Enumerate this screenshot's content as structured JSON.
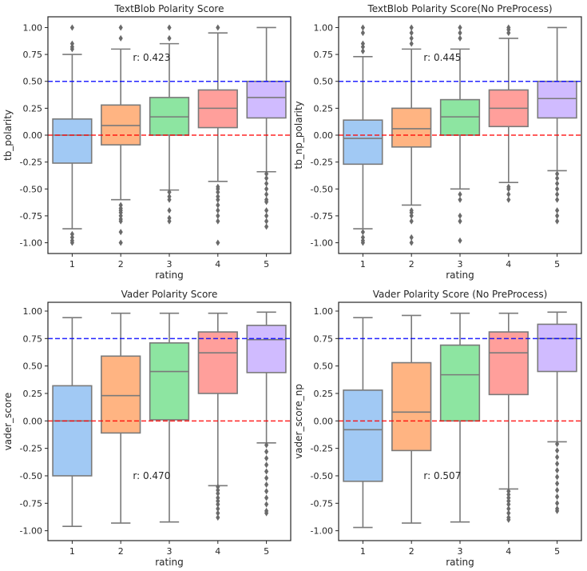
{
  "chart_data": [
    {
      "type": "box",
      "title": "TextBlob Polarity Score",
      "xlabel": "rating",
      "ylabel": "tb_polarity",
      "categories": [
        "1",
        "2",
        "3",
        "4",
        "5"
      ],
      "ylim": [
        -1.1,
        1.1
      ],
      "yticks": [
        "1.00",
        "0.75",
        "0.50",
        "0.25",
        "0.00",
        "-0.25",
        "-0.50",
        "-0.75",
        "-1.00"
      ],
      "annotation": "r: 0.423",
      "annotation_at": [
        1.75,
        0.72
      ],
      "hlines": [
        {
          "y": 0.5,
          "color": "#0000ff"
        },
        {
          "y": 0.0,
          "color": "#ff0000"
        }
      ],
      "boxes": [
        {
          "q1": -0.26,
          "median": 0.0,
          "q3": 0.15,
          "whislo": -0.87,
          "whishi": 0.75,
          "fliers": [
            0.8,
            0.82,
            0.85,
            1.0,
            -0.92,
            -0.95,
            -0.98,
            -1.0
          ]
        },
        {
          "q1": -0.09,
          "median": 0.09,
          "q3": 0.28,
          "whislo": -0.6,
          "whishi": 0.8,
          "fliers": [
            0.9,
            1.0,
            -0.65,
            -0.68,
            -0.7,
            -0.72,
            -0.75,
            -0.78,
            -0.8,
            -0.9,
            -1.0
          ]
        },
        {
          "q1": 0.0,
          "median": 0.17,
          "q3": 0.35,
          "whislo": -0.51,
          "whishi": 0.85,
          "fliers": [
            0.9,
            1.0,
            -0.53,
            -0.57,
            -0.6,
            -0.7,
            -0.77,
            -0.8
          ]
        },
        {
          "q1": 0.07,
          "median": 0.25,
          "q3": 0.42,
          "whislo": -0.43,
          "whishi": 0.95,
          "fliers": [
            1.0,
            -0.48,
            -0.5,
            -0.53,
            -0.57,
            -0.6,
            -0.65,
            -0.7,
            -0.75,
            -0.8,
            -1.0
          ]
        },
        {
          "q1": 0.16,
          "median": 0.35,
          "q3": 0.5,
          "whislo": -0.34,
          "whishi": 1.0,
          "fliers": [
            -0.36,
            -0.4,
            -0.45,
            -0.5,
            -0.55,
            -0.6,
            -0.62,
            -0.7,
            -0.75,
            -0.8,
            -0.85
          ]
        }
      ]
    },
    {
      "type": "box",
      "title": "TextBlob Polarity Score(No PreProcess)",
      "xlabel": "rating",
      "ylabel": "tb_np_polarity",
      "categories": [
        "1",
        "2",
        "3",
        "4",
        "5"
      ],
      "ylim": [
        -1.1,
        1.1
      ],
      "yticks": [
        "1.00",
        "0.75",
        "0.50",
        "0.25",
        "0.00",
        "-0.25",
        "-0.50",
        "-0.75",
        "-1.00"
      ],
      "annotation": "r: 0.445",
      "annotation_at": [
        1.75,
        0.72
      ],
      "hlines": [
        {
          "y": 0.5,
          "color": "#0000ff"
        },
        {
          "y": 0.0,
          "color": "#ff0000"
        }
      ],
      "boxes": [
        {
          "q1": -0.27,
          "median": -0.03,
          "q3": 0.14,
          "whislo": -0.87,
          "whishi": 0.73,
          "fliers": [
            0.78,
            0.82,
            0.85,
            0.95,
            1.0,
            -0.9,
            -0.95,
            -0.98,
            -1.0
          ]
        },
        {
          "q1": -0.11,
          "median": 0.06,
          "q3": 0.25,
          "whislo": -0.65,
          "whishi": 0.8,
          "fliers": [
            0.85,
            0.9,
            0.95,
            1.0,
            -0.7,
            -0.72,
            -0.75,
            -0.8,
            -0.95,
            -1.0
          ]
        },
        {
          "q1": 0.0,
          "median": 0.17,
          "q3": 0.33,
          "whislo": -0.5,
          "whishi": 0.8,
          "fliers": [
            0.9,
            0.95,
            1.0,
            -0.55,
            -0.6,
            -0.75,
            -0.8,
            -0.98
          ]
        },
        {
          "q1": 0.08,
          "median": 0.25,
          "q3": 0.42,
          "whislo": -0.44,
          "whishi": 0.9,
          "fliers": [
            0.95,
            0.98,
            1.0,
            -0.48,
            -0.5,
            -0.55,
            -0.6
          ]
        },
        {
          "q1": 0.16,
          "median": 0.34,
          "q3": 0.5,
          "whislo": -0.33,
          "whishi": 1.0,
          "fliers": [
            -0.36,
            -0.4,
            -0.45,
            -0.5,
            -0.55,
            -0.6,
            -0.7,
            -0.75,
            -0.8
          ]
        }
      ]
    },
    {
      "type": "box",
      "title": "Vader Polarity Score",
      "xlabel": "rating",
      "ylabel": "vader_score",
      "categories": [
        "1",
        "2",
        "3",
        "4",
        "5"
      ],
      "ylim": [
        -1.09,
        1.08
      ],
      "yticks": [
        "1.00",
        "0.75",
        "0.50",
        "0.25",
        "0.00",
        "-0.25",
        "-0.50",
        "-0.75",
        "-1.00"
      ],
      "annotation": "r: 0.470",
      "annotation_at": [
        1.75,
        -0.5
      ],
      "hlines": [
        {
          "y": 0.75,
          "color": "#0000ff"
        },
        {
          "y": 0.0,
          "color": "#ff0000"
        }
      ],
      "boxes": [
        {
          "q1": -0.5,
          "median": 0.0,
          "q3": 0.32,
          "whislo": -0.96,
          "whishi": 0.94,
          "fliers": []
        },
        {
          "q1": -0.11,
          "median": 0.23,
          "q3": 0.59,
          "whislo": -0.93,
          "whishi": 0.98,
          "fliers": []
        },
        {
          "q1": 0.01,
          "median": 0.45,
          "q3": 0.71,
          "whislo": -0.92,
          "whishi": 0.98,
          "fliers": []
        },
        {
          "q1": 0.25,
          "median": 0.62,
          "q3": 0.81,
          "whislo": -0.59,
          "whishi": 0.98,
          "fliers": [
            -0.6,
            -0.63,
            -0.66,
            -0.7,
            -0.73,
            -0.76,
            -0.8,
            -0.84,
            -0.88
          ]
        },
        {
          "q1": 0.44,
          "median": 0.74,
          "q3": 0.87,
          "whislo": -0.2,
          "whishi": 0.99,
          "fliers": [
            -0.22,
            -0.28,
            -0.34,
            -0.4,
            -0.46,
            -0.52,
            -0.58,
            -0.64,
            -0.7,
            -0.76,
            -0.82,
            -0.84
          ]
        }
      ]
    },
    {
      "type": "box",
      "title": "Vader Polarity Score (No PreProcess)",
      "xlabel": "rating",
      "ylabel": "vader_score_np",
      "categories": [
        "1",
        "2",
        "3",
        "4",
        "5"
      ],
      "ylim": [
        -1.09,
        1.08
      ],
      "yticks": [
        "1.00",
        "0.75",
        "0.50",
        "0.25",
        "0.00",
        "-0.25",
        "-0.50",
        "-0.75",
        "-1.00"
      ],
      "annotation": "r: 0.507",
      "annotation_at": [
        1.75,
        -0.5
      ],
      "hlines": [
        {
          "y": 0.75,
          "color": "#0000ff"
        },
        {
          "y": 0.0,
          "color": "#ff0000"
        }
      ],
      "boxes": [
        {
          "q1": -0.55,
          "median": -0.08,
          "q3": 0.28,
          "whislo": -0.97,
          "whishi": 0.94,
          "fliers": []
        },
        {
          "q1": -0.27,
          "median": 0.08,
          "q3": 0.53,
          "whislo": -0.93,
          "whishi": 0.96,
          "fliers": []
        },
        {
          "q1": 0.0,
          "median": 0.42,
          "q3": 0.69,
          "whislo": -0.92,
          "whishi": 0.98,
          "fliers": []
        },
        {
          "q1": 0.24,
          "median": 0.62,
          "q3": 0.81,
          "whislo": -0.62,
          "whishi": 0.98,
          "fliers": [
            -0.64,
            -0.67,
            -0.7,
            -0.73,
            -0.76,
            -0.8,
            -0.84,
            -0.88,
            -0.9
          ]
        },
        {
          "q1": 0.45,
          "median": 0.75,
          "q3": 0.88,
          "whislo": -0.19,
          "whishi": 0.99,
          "fliers": [
            -0.21,
            -0.27,
            -0.33,
            -0.39,
            -0.45,
            -0.51,
            -0.57,
            -0.63,
            -0.69,
            -0.75,
            -0.8,
            -0.82
          ]
        }
      ]
    }
  ],
  "colors": {
    "boxes": [
      "#a1c9f4",
      "#ffb482",
      "#8de5a1",
      "#ff9f9b",
      "#d0bbff"
    ],
    "box_edge": "#7a7a7a"
  }
}
